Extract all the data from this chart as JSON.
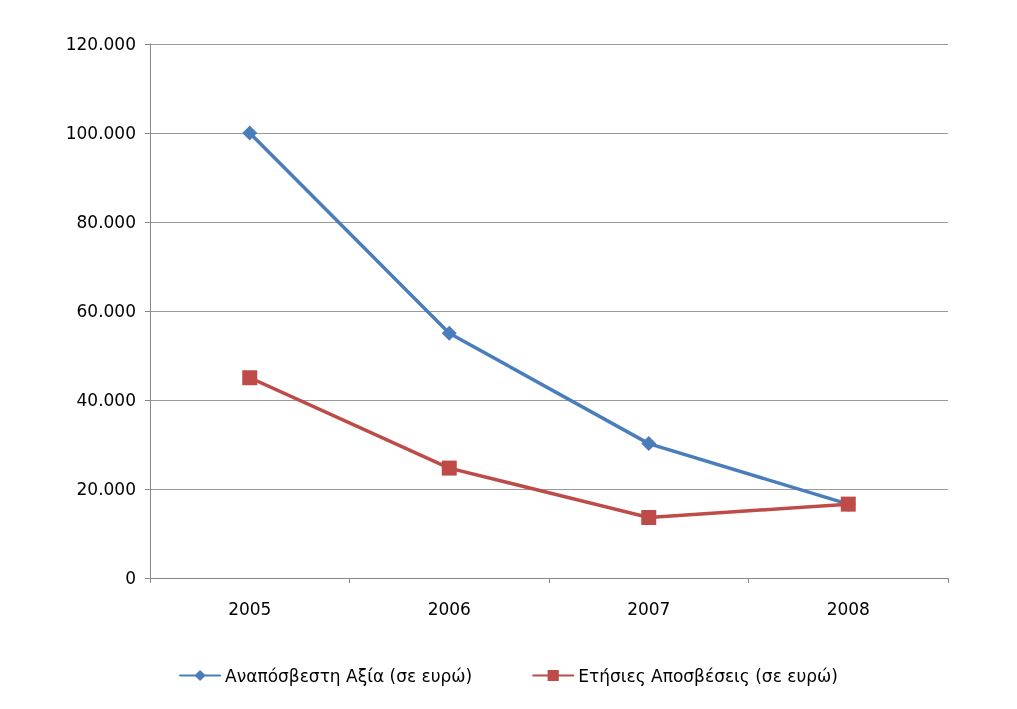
{
  "chart_data": {
    "type": "line",
    "categories": [
      "2005",
      "2006",
      "2007",
      "2008"
    ],
    "series": [
      {
        "name": "Αναπόσβεστη Αξία (σε ευρώ)",
        "color": "#4a7ebb",
        "marker": "diamond",
        "values": [
          100000,
          55000,
          30200,
          16600
        ]
      },
      {
        "name": "Ετήσιες Αποσβέσεις (σε ευρώ)",
        "color": "#be4b48",
        "marker": "square",
        "values": [
          45000,
          24700,
          13600,
          16600
        ]
      }
    ],
    "ylim": [
      0,
      120000
    ],
    "yticks": [
      0,
      {
        "value": 20000,
        "label": "20.000"
      },
      {
        "value": 40000,
        "label": "40.000"
      },
      {
        "value": 60000,
        "label": "60.000"
      },
      {
        "value": 80000,
        "label": "80.000"
      },
      {
        "value": 100000,
        "label": "100.000"
      },
      {
        "value": 120000,
        "label": "120.000"
      }
    ],
    "grid": "y",
    "legend": "bottom",
    "line_style": "solid"
  }
}
